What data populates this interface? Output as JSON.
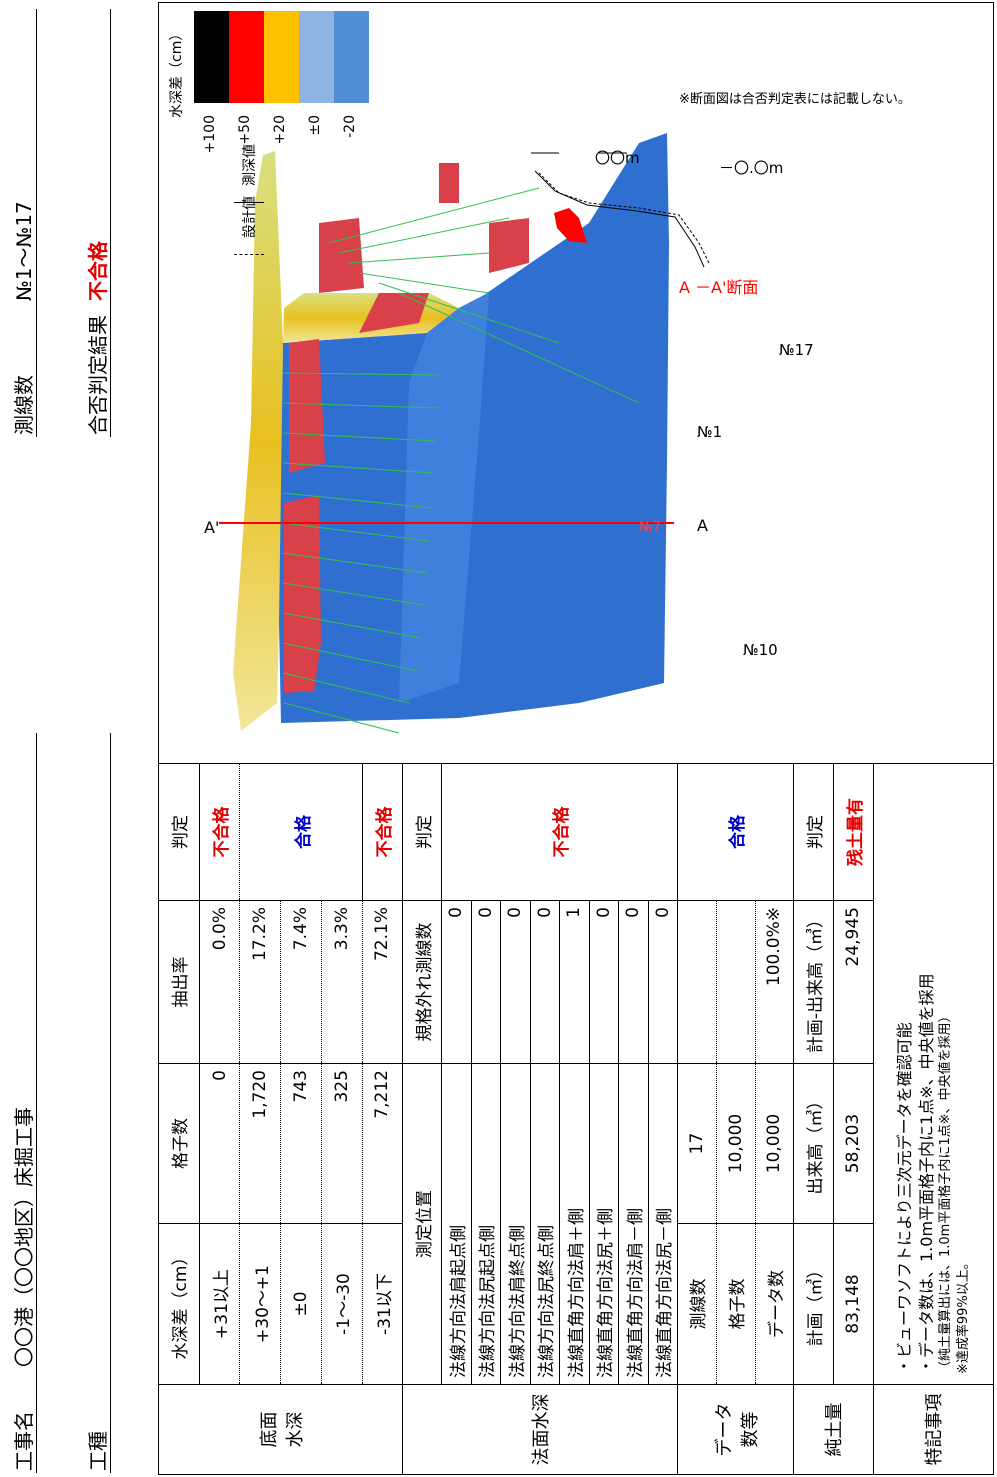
{
  "header": {
    "project_label": "工事名",
    "project_name": "〇〇港（〇〇地区）床掘工事",
    "type_label": "工種",
    "type_value": "",
    "lines_label": "測線数",
    "lines_value": "№1～№17",
    "result_label": "合否判定結果",
    "result_value": "不合格"
  },
  "table": {
    "depth_group": "底面\n水深",
    "depth_header": [
      "水深差（cm）",
      "格子数",
      "抽出率",
      "判定"
    ],
    "depth_rows": [
      {
        "range": "+31以上",
        "count": "0",
        "rate": "0.0%",
        "judge": "不合格"
      },
      {
        "range": "+30～+1",
        "count": "1,720",
        "rate": "17.2%",
        "judge": ""
      },
      {
        "range": "±0",
        "count": "743",
        "rate": "7.4%",
        "judge": "合格"
      },
      {
        "range": "-1～-30",
        "count": "325",
        "rate": "3.3%",
        "judge": ""
      },
      {
        "range": "-31以下",
        "count": "7,212",
        "rate": "72.1%",
        "judge": "不合格"
      }
    ],
    "slope_group": "法面水深",
    "slope_header": [
      "測定位置",
      "規格外れ測線数",
      "判定"
    ],
    "slope_rows": [
      {
        "pos": "法線方向法肩起点側",
        "n": "0"
      },
      {
        "pos": "法線方向法尻起点側",
        "n": "0"
      },
      {
        "pos": "法線方向法肩終点側",
        "n": "0"
      },
      {
        "pos": "法線方向法尻終点側",
        "n": "0"
      },
      {
        "pos": "法線直角方向法肩＋側",
        "n": "1"
      },
      {
        "pos": "法線直角方向法尻＋側",
        "n": "0"
      },
      {
        "pos": "法線直角方向法肩－側",
        "n": "0"
      },
      {
        "pos": "法線直角方向法尻－側",
        "n": "0"
      }
    ],
    "slope_judge": "不合格",
    "data_group": "データ\n数等",
    "data_rows": [
      {
        "label": "測線数",
        "value": "17",
        "extra": ""
      },
      {
        "label": "格子数",
        "value": "10,000",
        "extra": ""
      },
      {
        "label": "データ数",
        "value": "10,000",
        "extra": "100.0%※"
      }
    ],
    "data_judge": "合格",
    "vol_group": "純土量",
    "vol_header": [
      "計画（㎥）",
      "出来高（㎥）",
      "計画-出来高（㎥）",
      "判定"
    ],
    "vol_row": {
      "plan": "83,148",
      "done": "58,203",
      "diff": "24,945",
      "judge": "残土量有"
    },
    "notes_label": "特記事項",
    "notes": [
      "・ビューワソフトにより三次元データを確認可能",
      "・データ数は、1.0m平面格子内に1点※、中央値を採用",
      "（純土量算出には、1.0m平面格子内に1点※、中央値を採用）",
      "※達成率99%以上。"
    ]
  },
  "legend": {
    "title": "水深差（cm）",
    "items": [
      {
        "label": "+100",
        "color": "#000000"
      },
      {
        "label": "+50",
        "color": "#ff0000"
      },
      {
        "label": "+20",
        "color": "#ffc000"
      },
      {
        "label": "±0",
        "color": "#8db4e2"
      },
      {
        "label": "-20",
        "color": "#538dd5"
      }
    ],
    "design": "設計値",
    "measured": "測深値"
  },
  "map": {
    "n1": "№1",
    "n10": "№10",
    "n17": "№17",
    "nmid": "№7",
    "a": "A",
    "a2": "A'",
    "section_title": "A －A'断面",
    "depth_label": "－〇.〇m",
    "width_label": "〇〇m",
    "section_note": "※断面図は合否判定表には記載しない。"
  }
}
